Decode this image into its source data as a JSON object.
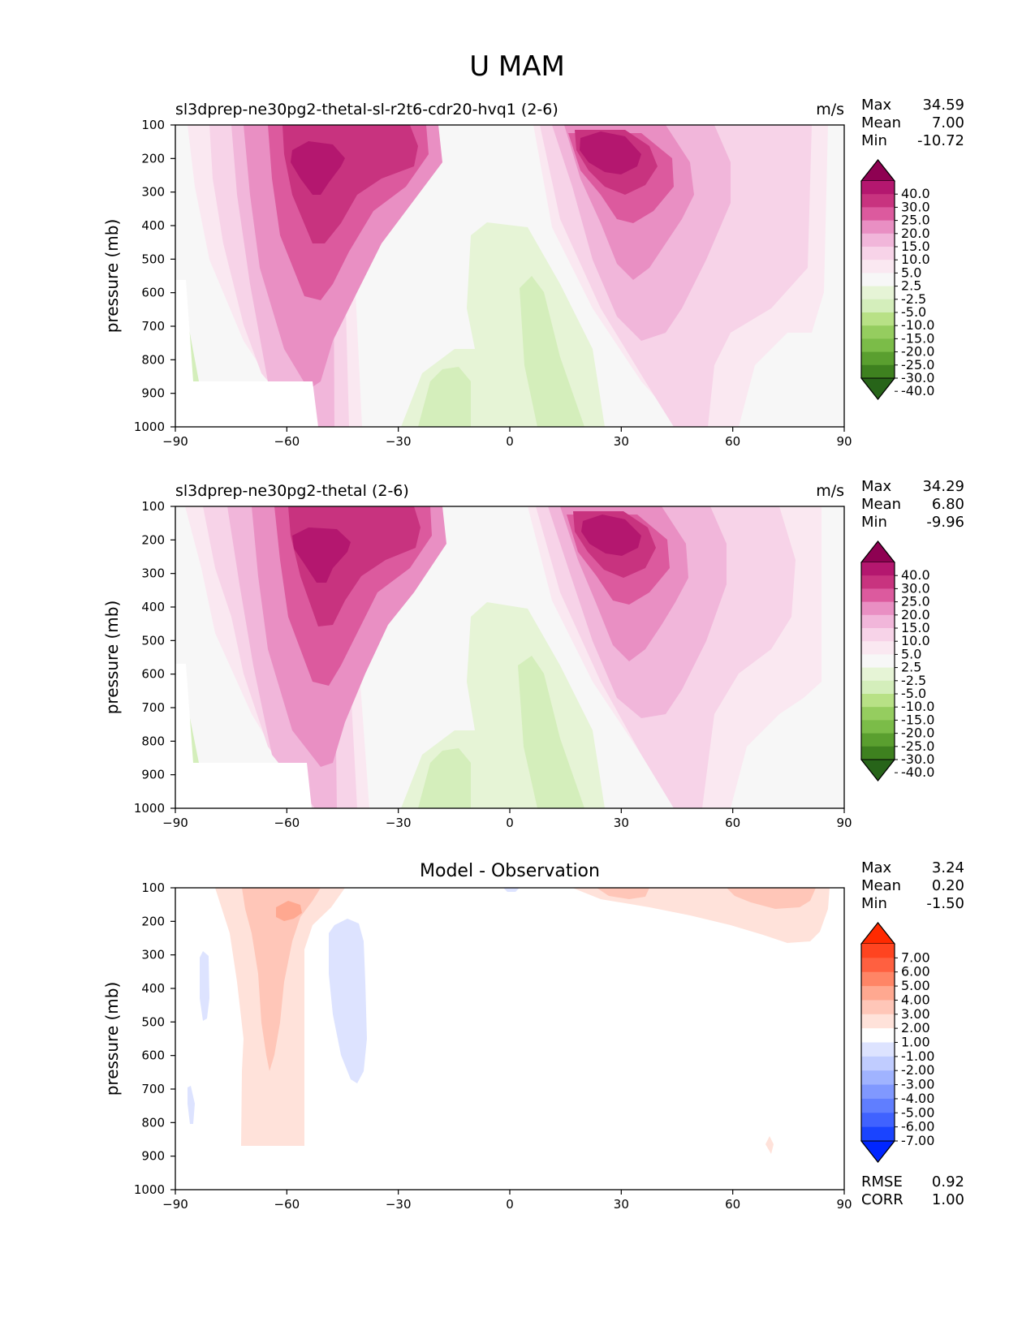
{
  "figure": {
    "title": "U MAM"
  },
  "chart_data": [
    {
      "type": "heatmap",
      "panel": "test",
      "title_left": "sl3dprep-ne30pg2-thetal-sl-r2t6-cdr20-hvq1 (2-6)",
      "units": "m/s",
      "title_center": "",
      "xlabel": "",
      "ylabel": "pressure (mb)",
      "xlim": [
        -90,
        90
      ],
      "ylim": [
        1000,
        100
      ],
      "xticks": [
        "−90",
        "−60",
        "−30",
        "0",
        "30",
        "60",
        "90"
      ],
      "yticks": [
        "100",
        "200",
        "300",
        "400",
        "500",
        "600",
        "700",
        "800",
        "900",
        "1000"
      ],
      "stats": [
        {
          "label": "Max",
          "value": "34.59"
        },
        {
          "label": "Mean",
          "value": "7.00"
        },
        {
          "label": "Min",
          "value": "-10.72"
        }
      ],
      "colorbar": {
        "labels": [
          "40.0",
          "30.0",
          "25.0",
          "20.0",
          "15.0",
          "10.0",
          "5.0",
          "2.5",
          "-2.5",
          "-5.0",
          "-10.0",
          "-15.0",
          "-20.0",
          "-25.0",
          "-30.0",
          "-40.0"
        ],
        "colors": [
          "#8e0152",
          "#b4176f",
          "#c8337f",
          "#dc5a9e",
          "#e98fc3",
          "#f1b6da",
          "#f7d3e8",
          "#fae8f1",
          "#f7f7f7",
          "#e6f4d6",
          "#d4eebb",
          "#b8e186",
          "#95cd5f",
          "#7bbc48",
          "#5a9f2f",
          "#3e811f",
          "#276419"
        ]
      },
      "bottom_stats": []
    },
    {
      "type": "heatmap",
      "panel": "reference",
      "title_left": "sl3dprep-ne30pg2-thetal (2-6)",
      "units": "m/s",
      "title_center": "",
      "xlabel": "",
      "ylabel": "pressure (mb)",
      "xlim": [
        -90,
        90
      ],
      "ylim": [
        1000,
        100
      ],
      "xticks": [
        "−90",
        "−60",
        "−30",
        "0",
        "30",
        "60",
        "90"
      ],
      "yticks": [
        "100",
        "200",
        "300",
        "400",
        "500",
        "600",
        "700",
        "800",
        "900",
        "1000"
      ],
      "stats": [
        {
          "label": "Max",
          "value": "34.29"
        },
        {
          "label": "Mean",
          "value": "6.80"
        },
        {
          "label": "Min",
          "value": "-9.96"
        }
      ],
      "colorbar": {
        "labels": [
          "40.0",
          "30.0",
          "25.0",
          "20.0",
          "15.0",
          "10.0",
          "5.0",
          "2.5",
          "-2.5",
          "-5.0",
          "-10.0",
          "-15.0",
          "-20.0",
          "-25.0",
          "-30.0",
          "-40.0"
        ],
        "colors": [
          "#8e0152",
          "#b4176f",
          "#c8337f",
          "#dc5a9e",
          "#e98fc3",
          "#f1b6da",
          "#f7d3e8",
          "#fae8f1",
          "#f7f7f7",
          "#e6f4d6",
          "#d4eebb",
          "#b8e186",
          "#95cd5f",
          "#7bbc48",
          "#5a9f2f",
          "#3e811f",
          "#276419"
        ]
      },
      "bottom_stats": []
    },
    {
      "type": "heatmap",
      "panel": "difference",
      "title_left": "",
      "units": "",
      "title_center": "Model - Observation",
      "xlabel": "",
      "ylabel": "pressure (mb)",
      "xlim": [
        -90,
        90
      ],
      "ylim": [
        1000,
        100
      ],
      "xticks": [
        "−90",
        "−60",
        "−30",
        "0",
        "30",
        "60",
        "90"
      ],
      "yticks": [
        "100",
        "200",
        "300",
        "400",
        "500",
        "600",
        "700",
        "800",
        "900",
        "1000"
      ],
      "stats": [
        {
          "label": "Max",
          "value": "3.24"
        },
        {
          "label": "Mean",
          "value": "0.20"
        },
        {
          "label": "Min",
          "value": "-1.50"
        }
      ],
      "colorbar": {
        "labels": [
          "7.00",
          "6.00",
          "5.00",
          "4.00",
          "3.00",
          "2.00",
          "1.00",
          "-1.00",
          "-2.00",
          "-3.00",
          "-4.00",
          "-5.00",
          "-6.00",
          "-7.00"
        ],
        "colors": [
          "#ff2a00",
          "#ff4420",
          "#ff6040",
          "#ff8566",
          "#ffa890",
          "#ffc6b8",
          "#ffe2da",
          "#ffffff",
          "#dde3ff",
          "#c0ccff",
          "#a0b3ff",
          "#8098ff",
          "#607eff",
          "#4062ff",
          "#1a44ff",
          "#0026ff"
        ]
      },
      "bottom_stats": [
        {
          "label": "RMSE",
          "value": "0.92"
        },
        {
          "label": "CORR",
          "value": "1.00"
        }
      ]
    }
  ]
}
